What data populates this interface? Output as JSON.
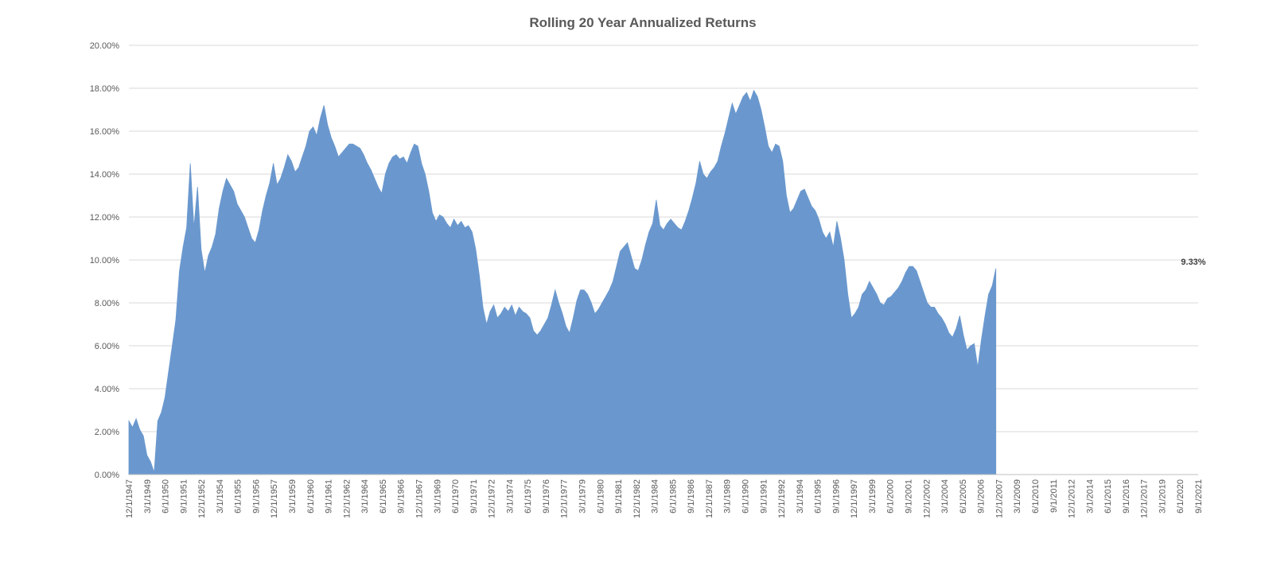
{
  "chart_data": {
    "type": "area",
    "title": "Rolling 20 Year Annualized Returns",
    "xlabel": "",
    "ylabel": "",
    "y_unit": "percent",
    "ylim": [
      0,
      20
    ],
    "y_ticks": [
      "0.00%",
      "2.00%",
      "4.00%",
      "6.00%",
      "8.00%",
      "10.00%",
      "12.00%",
      "14.00%",
      "16.00%",
      "18.00%",
      "20.00%"
    ],
    "x_tick_labels": [
      "12/1/1947",
      "3/1/1949",
      "6/1/1950",
      "9/1/1951",
      "12/1/1952",
      "3/1/1954",
      "6/1/1955",
      "9/1/1956",
      "12/1/1957",
      "3/1/1959",
      "6/1/1960",
      "9/1/1961",
      "12/1/1962",
      "3/1/1964",
      "6/1/1965",
      "9/1/1966",
      "12/1/1967",
      "3/1/1969",
      "6/1/1970",
      "9/1/1971",
      "12/1/1972",
      "3/1/1974",
      "6/1/1975",
      "9/1/1976",
      "12/1/1977",
      "3/1/1979",
      "6/1/1980",
      "9/1/1981",
      "12/1/1982",
      "3/1/1984",
      "6/1/1985",
      "9/1/1986",
      "12/1/1987",
      "3/1/1989",
      "6/1/1990",
      "9/1/1991",
      "12/1/1992",
      "3/1/1994",
      "6/1/1995",
      "9/1/1996",
      "12/1/1997",
      "3/1/1999",
      "6/1/2000",
      "9/1/2001",
      "12/1/2002",
      "3/1/2004",
      "6/1/2005",
      "9/1/2006",
      "12/1/2007",
      "3/1/2009",
      "6/1/2010",
      "9/1/2011",
      "12/1/2012",
      "3/1/2014",
      "6/1/2015",
      "9/1/2016",
      "12/1/2017",
      "3/1/2019",
      "6/1/2020",
      "9/1/2021"
    ],
    "x_range": [
      "1947-12",
      "2021-12"
    ],
    "grid": true,
    "legend": "none",
    "series": [
      {
        "color": "#6a98ce",
        "points": [
          [
            "1947-12",
            2.5
          ],
          [
            "1948-03",
            2.2
          ],
          [
            "1948-06",
            2.6
          ],
          [
            "1948-09",
            2.1
          ],
          [
            "1948-12",
            1.8
          ],
          [
            "1949-03",
            0.9
          ],
          [
            "1949-06",
            0.6
          ],
          [
            "1949-09",
            0.1
          ],
          [
            "1949-12",
            2.5
          ],
          [
            "1950-03",
            2.9
          ],
          [
            "1950-06",
            3.6
          ],
          [
            "1950-09",
            4.8
          ],
          [
            "1950-12",
            6.0
          ],
          [
            "1951-03",
            7.2
          ],
          [
            "1951-06",
            9.5
          ],
          [
            "1951-09",
            10.6
          ],
          [
            "1951-12",
            11.5
          ],
          [
            "1952-03",
            14.5
          ],
          [
            "1952-06",
            11.5
          ],
          [
            "1952-09",
            13.4
          ],
          [
            "1952-12",
            10.5
          ],
          [
            "1953-03",
            9.4
          ],
          [
            "1953-06",
            10.2
          ],
          [
            "1953-09",
            10.6
          ],
          [
            "1953-12",
            11.2
          ],
          [
            "1954-03",
            12.4
          ],
          [
            "1954-06",
            13.2
          ],
          [
            "1954-09",
            13.8
          ],
          [
            "1954-12",
            13.5
          ],
          [
            "1955-03",
            13.2
          ],
          [
            "1955-06",
            12.6
          ],
          [
            "1955-09",
            12.3
          ],
          [
            "1955-12",
            12.0
          ],
          [
            "1956-03",
            11.5
          ],
          [
            "1956-06",
            11.0
          ],
          [
            "1956-09",
            10.8
          ],
          [
            "1956-12",
            11.4
          ],
          [
            "1957-03",
            12.3
          ],
          [
            "1957-06",
            13.0
          ],
          [
            "1957-09",
            13.6
          ],
          [
            "1957-12",
            14.5
          ],
          [
            "1958-03",
            13.5
          ],
          [
            "1958-06",
            13.8
          ],
          [
            "1958-09",
            14.3
          ],
          [
            "1958-12",
            14.9
          ],
          [
            "1959-03",
            14.6
          ],
          [
            "1959-06",
            14.1
          ],
          [
            "1959-09",
            14.3
          ],
          [
            "1959-12",
            14.8
          ],
          [
            "1960-03",
            15.3
          ],
          [
            "1960-06",
            16.0
          ],
          [
            "1960-09",
            16.2
          ],
          [
            "1960-12",
            15.8
          ],
          [
            "1961-03",
            16.6
          ],
          [
            "1961-06",
            17.2
          ],
          [
            "1961-09",
            16.3
          ],
          [
            "1961-12",
            15.7
          ],
          [
            "1962-03",
            15.3
          ],
          [
            "1962-06",
            14.8
          ],
          [
            "1962-09",
            15.0
          ],
          [
            "1962-12",
            15.2
          ],
          [
            "1963-03",
            15.4
          ],
          [
            "1963-06",
            15.4
          ],
          [
            "1963-09",
            15.3
          ],
          [
            "1963-12",
            15.2
          ],
          [
            "1964-03",
            14.9
          ],
          [
            "1964-06",
            14.5
          ],
          [
            "1964-09",
            14.2
          ],
          [
            "1964-12",
            13.8
          ],
          [
            "1965-03",
            13.4
          ],
          [
            "1965-06",
            13.1
          ],
          [
            "1965-09",
            14.0
          ],
          [
            "1965-12",
            14.5
          ],
          [
            "1966-03",
            14.8
          ],
          [
            "1966-06",
            14.9
          ],
          [
            "1966-09",
            14.7
          ],
          [
            "1966-12",
            14.8
          ],
          [
            "1967-03",
            14.5
          ],
          [
            "1967-06",
            15.0
          ],
          [
            "1967-09",
            15.4
          ],
          [
            "1967-12",
            15.3
          ],
          [
            "1968-03",
            14.5
          ],
          [
            "1968-06",
            14.0
          ],
          [
            "1968-09",
            13.2
          ],
          [
            "1968-12",
            12.2
          ],
          [
            "1969-03",
            11.8
          ],
          [
            "1969-06",
            12.1
          ],
          [
            "1969-09",
            12.0
          ],
          [
            "1969-12",
            11.7
          ],
          [
            "1970-03",
            11.5
          ],
          [
            "1970-06",
            11.9
          ],
          [
            "1970-09",
            11.6
          ],
          [
            "1970-12",
            11.8
          ],
          [
            "1971-03",
            11.5
          ],
          [
            "1971-06",
            11.6
          ],
          [
            "1971-09",
            11.3
          ],
          [
            "1971-12",
            10.5
          ],
          [
            "1972-03",
            9.3
          ],
          [
            "1972-06",
            7.8
          ],
          [
            "1972-09",
            7.0
          ],
          [
            "1972-12",
            7.6
          ],
          [
            "1973-03",
            7.9
          ],
          [
            "1973-06",
            7.3
          ],
          [
            "1973-09",
            7.5
          ],
          [
            "1973-12",
            7.8
          ],
          [
            "1974-03",
            7.6
          ],
          [
            "1974-06",
            7.9
          ],
          [
            "1974-09",
            7.4
          ],
          [
            "1974-12",
            7.8
          ],
          [
            "1975-03",
            7.6
          ],
          [
            "1975-06",
            7.5
          ],
          [
            "1975-09",
            7.3
          ],
          [
            "1975-12",
            6.7
          ],
          [
            "1976-03",
            6.5
          ],
          [
            "1976-06",
            6.7
          ],
          [
            "1976-09",
            7.0
          ],
          [
            "1976-12",
            7.3
          ],
          [
            "1977-03",
            7.9
          ],
          [
            "1977-06",
            8.6
          ],
          [
            "1977-09",
            8.0
          ],
          [
            "1977-12",
            7.5
          ],
          [
            "1978-03",
            6.9
          ],
          [
            "1978-06",
            6.6
          ],
          [
            "1978-09",
            7.3
          ],
          [
            "1978-12",
            8.1
          ],
          [
            "1979-03",
            8.6
          ],
          [
            "1979-06",
            8.6
          ],
          [
            "1979-09",
            8.4
          ],
          [
            "1979-12",
            8.0
          ],
          [
            "1980-03",
            7.5
          ],
          [
            "1980-06",
            7.7
          ],
          [
            "1980-09",
            8.0
          ],
          [
            "1980-12",
            8.3
          ],
          [
            "1981-03",
            8.6
          ],
          [
            "1981-06",
            9.0
          ],
          [
            "1981-09",
            9.7
          ],
          [
            "1981-12",
            10.4
          ],
          [
            "1982-03",
            10.6
          ],
          [
            "1982-06",
            10.8
          ],
          [
            "1982-09",
            10.2
          ],
          [
            "1982-12",
            9.6
          ],
          [
            "1983-03",
            9.5
          ],
          [
            "1983-06",
            10.0
          ],
          [
            "1983-09",
            10.7
          ],
          [
            "1983-12",
            11.3
          ],
          [
            "1984-03",
            11.7
          ],
          [
            "1984-06",
            12.8
          ],
          [
            "1984-09",
            11.6
          ],
          [
            "1984-12",
            11.4
          ],
          [
            "1985-03",
            11.7
          ],
          [
            "1985-06",
            11.9
          ],
          [
            "1985-09",
            11.7
          ],
          [
            "1985-12",
            11.5
          ],
          [
            "1986-03",
            11.4
          ],
          [
            "1986-06",
            11.8
          ],
          [
            "1986-09",
            12.3
          ],
          [
            "1986-12",
            12.9
          ],
          [
            "1987-03",
            13.6
          ],
          [
            "1987-06",
            14.6
          ],
          [
            "1987-09",
            14.0
          ],
          [
            "1987-12",
            13.8
          ],
          [
            "1988-03",
            14.1
          ],
          [
            "1988-06",
            14.3
          ],
          [
            "1988-09",
            14.6
          ],
          [
            "1988-12",
            15.3
          ],
          [
            "1989-03",
            15.9
          ],
          [
            "1989-06",
            16.6
          ],
          [
            "1989-09",
            17.3
          ],
          [
            "1989-12",
            16.8
          ],
          [
            "1990-03",
            17.2
          ],
          [
            "1990-06",
            17.6
          ],
          [
            "1990-09",
            17.8
          ],
          [
            "1990-12",
            17.4
          ],
          [
            "1991-03",
            17.9
          ],
          [
            "1991-06",
            17.6
          ],
          [
            "1991-09",
            17.0
          ],
          [
            "1991-12",
            16.2
          ],
          [
            "1992-03",
            15.3
          ],
          [
            "1992-06",
            15.0
          ],
          [
            "1992-09",
            15.4
          ],
          [
            "1992-12",
            15.3
          ],
          [
            "1993-03",
            14.6
          ],
          [
            "1993-06",
            13.0
          ],
          [
            "1993-09",
            12.2
          ],
          [
            "1993-12",
            12.4
          ],
          [
            "1994-03",
            12.8
          ],
          [
            "1994-06",
            13.2
          ],
          [
            "1994-09",
            13.3
          ],
          [
            "1994-12",
            12.9
          ],
          [
            "1995-03",
            12.5
          ],
          [
            "1995-06",
            12.3
          ],
          [
            "1995-09",
            11.9
          ],
          [
            "1995-12",
            11.3
          ],
          [
            "1996-03",
            11.0
          ],
          [
            "1996-06",
            11.3
          ],
          [
            "1996-09",
            10.6
          ],
          [
            "1996-12",
            11.8
          ],
          [
            "1997-03",
            11.0
          ],
          [
            "1997-06",
            10.0
          ],
          [
            "1997-09",
            8.4
          ],
          [
            "1997-12",
            7.3
          ],
          [
            "1998-03",
            7.5
          ],
          [
            "1998-06",
            7.8
          ],
          [
            "1998-09",
            8.4
          ],
          [
            "1998-12",
            8.6
          ],
          [
            "1999-03",
            9.0
          ],
          [
            "1999-06",
            8.7
          ],
          [
            "1999-09",
            8.4
          ],
          [
            "1999-12",
            8.0
          ],
          [
            "2000-03",
            7.9
          ],
          [
            "2000-06",
            8.2
          ],
          [
            "2000-09",
            8.3
          ],
          [
            "2000-12",
            8.5
          ],
          [
            "2001-03",
            8.7
          ],
          [
            "2001-06",
            9.0
          ],
          [
            "2001-09",
            9.4
          ],
          [
            "2001-12",
            9.7
          ],
          [
            "2002-03",
            9.7
          ],
          [
            "2002-06",
            9.5
          ],
          [
            "2002-09",
            9.0
          ],
          [
            "2002-12",
            8.5
          ],
          [
            "2003-03",
            8.0
          ],
          [
            "2003-06",
            7.8
          ],
          [
            "2003-09",
            7.8
          ],
          [
            "2003-12",
            7.5
          ],
          [
            "2004-03",
            7.3
          ],
          [
            "2004-06",
            7.0
          ],
          [
            "2004-09",
            6.6
          ],
          [
            "2004-12",
            6.4
          ],
          [
            "2005-03",
            6.8
          ],
          [
            "2005-06",
            7.4
          ],
          [
            "2005-09",
            6.5
          ],
          [
            "2005-12",
            5.8
          ],
          [
            "2006-03",
            6.0
          ],
          [
            "2006-06",
            6.1
          ],
          [
            "2006-09",
            5.0
          ],
          [
            "2006-12",
            6.3
          ],
          [
            "2007-03",
            7.4
          ],
          [
            "2007-06",
            8.4
          ],
          [
            "2007-09",
            8.8
          ],
          [
            "2007-12",
            9.6
          ]
        ]
      }
    ],
    "annotations": [
      {
        "text": "9.33%",
        "x": "2021-12",
        "y": 9.33
      }
    ]
  }
}
